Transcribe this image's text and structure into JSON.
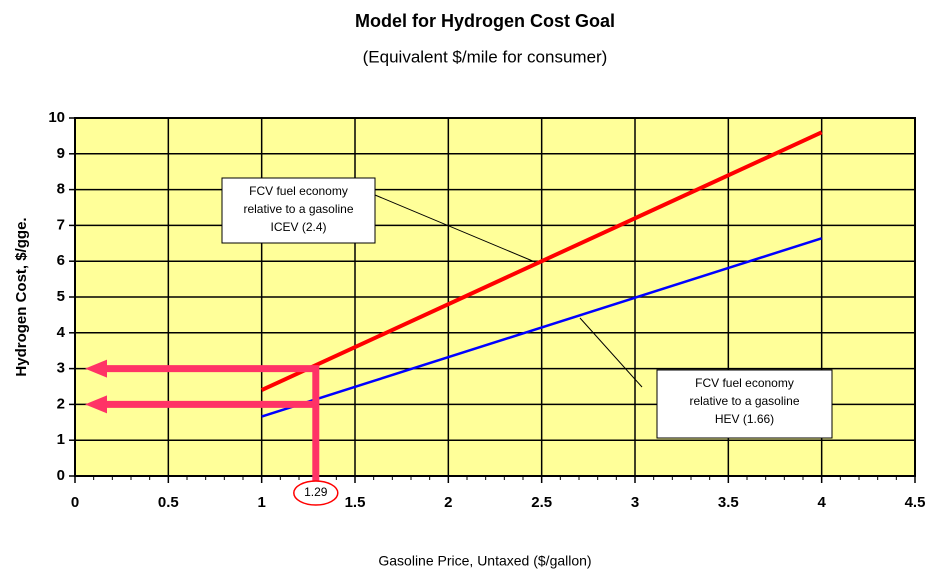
{
  "chart_data": {
    "type": "line",
    "title": "Model for Hydrogen Cost Goal",
    "subtitle": "(Equivalent $/mile for consumer)",
    "x_label": "Gasoline Price, Untaxed ($/gallon)",
    "y_label": "Hydrogen Cost, $/gge.",
    "x": [
      1,
      4
    ],
    "series": [
      {
        "name": "ICEV",
        "color": "#ff0000",
        "values": [
          2.4,
          9.6
        ]
      },
      {
        "name": "HEV",
        "color": "#0000ff",
        "values": [
          1.66,
          6.64
        ]
      }
    ],
    "xlim": [
      0,
      4.5
    ],
    "xticks": [
      0,
      0.5,
      1,
      1.5,
      2,
      2.5,
      3,
      3.5,
      4,
      4.5
    ],
    "ylim": [
      0,
      10
    ],
    "yticks": [
      0,
      1,
      2,
      3,
      4,
      5,
      6,
      7,
      8,
      9,
      10
    ],
    "grid": true,
    "background": "#ffff99",
    "marker_x": 1.29,
    "arrow_levels": [
      3,
      2
    ],
    "arrow_color": "#ff3366",
    "annotations": [
      {
        "lines": [
          "FCV fuel economy",
          "relative to a gasoline",
          "ICEV (2.4)"
        ]
      },
      {
        "lines": [
          "FCV fuel economy",
          "relative to a gasoline",
          "HEV (1.66)"
        ]
      }
    ]
  }
}
